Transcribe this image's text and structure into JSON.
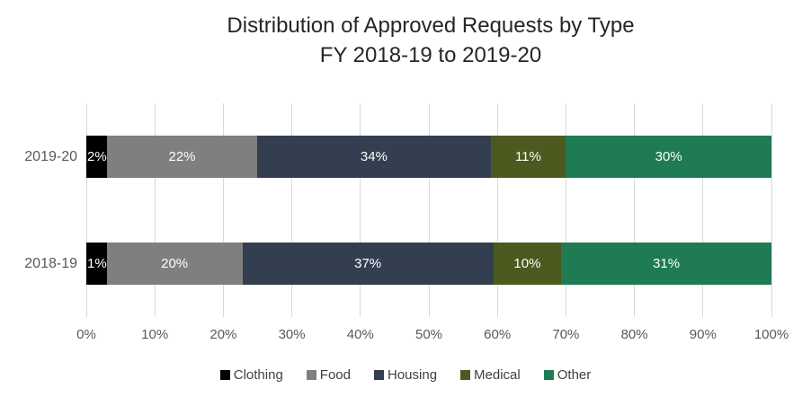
{
  "chart_data": {
    "type": "bar",
    "orientation": "horizontal-stacked",
    "title": "Distribution of Approved Requests by Type",
    "subtitle": "FY 2018-19 to 2019-20",
    "categories": [
      "2019-20",
      "2018-19"
    ],
    "series": [
      {
        "name": "Clothing",
        "color": "#000000",
        "values": [
          2,
          1
        ]
      },
      {
        "name": "Food",
        "color": "#7f7f7f",
        "values": [
          22,
          20
        ]
      },
      {
        "name": "Housing",
        "color": "#333f50",
        "values": [
          34,
          37
        ]
      },
      {
        "name": "Medical",
        "color": "#4c5a1f",
        "values": [
          11,
          10
        ]
      },
      {
        "name": "Other",
        "color": "#1e7b54",
        "values": [
          30,
          31
        ]
      }
    ],
    "data_labels": [
      [
        "2%",
        "22%",
        "34%",
        "11%",
        "30%"
      ],
      [
        "1%",
        "20%",
        "37%",
        "10%",
        "31%"
      ]
    ],
    "x_ticks": [
      "0%",
      "10%",
      "20%",
      "30%",
      "40%",
      "50%",
      "60%",
      "70%",
      "80%",
      "90%",
      "100%"
    ],
    "xlim": [
      0,
      100
    ],
    "grid": "vertical",
    "gridline_color": "#d9d9d9",
    "legend_position": "bottom",
    "legend_entries": [
      "Clothing",
      "Food",
      "Housing",
      "Medical",
      "Other"
    ]
  }
}
